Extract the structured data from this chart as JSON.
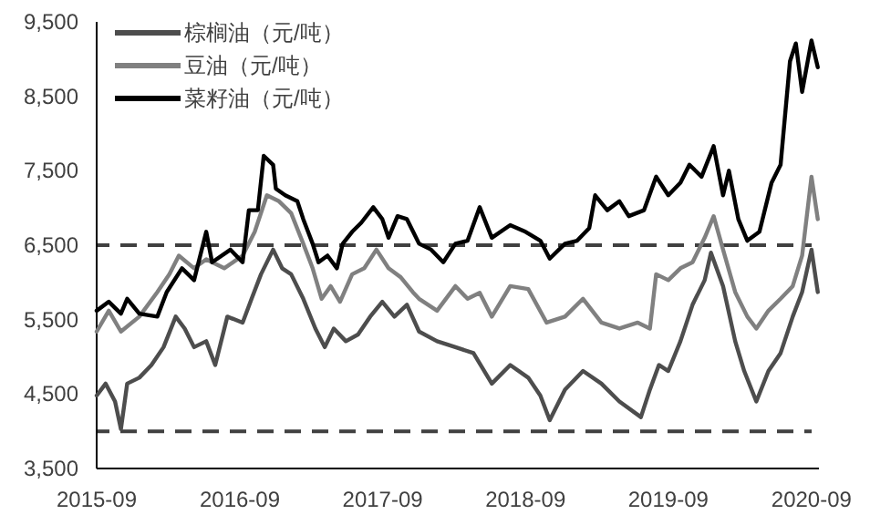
{
  "chart_data": {
    "type": "line",
    "legend": "top left",
    "xlim": [
      "2015-09-01",
      "2020-09-20"
    ],
    "xticks": [
      "2015-09",
      "2016-09",
      "2017-09",
      "2018-09",
      "2019-09",
      "2020-09"
    ],
    "ylim": [
      3500,
      9500
    ],
    "yticks": [
      {
        "value": 3500,
        "label": "3,500"
      },
      {
        "value": 4500,
        "label": "4,500"
      },
      {
        "value": 5500,
        "label": "5,500"
      },
      {
        "value": 6500,
        "label": "6,500"
      },
      {
        "value": 7500,
        "label": "7,500"
      },
      {
        "value": 8500,
        "label": "8,500"
      },
      {
        "value": 9500,
        "label": "9,500"
      }
    ],
    "ref_lines": [
      {
        "axis": "y",
        "value": 6500,
        "color": "#404040",
        "line_style": "dashed"
      },
      {
        "axis": "y",
        "value": 4000,
        "color": "#404040",
        "line_style": "dashed"
      }
    ],
    "series": [
      {
        "name": "棕榈油（元/吨）",
        "color": "#4d4d4d",
        "x": [
          "2015-09-01",
          "2015-09-24",
          "2015-10-18",
          "2015-11-02",
          "2015-11-18",
          "2015-12-19",
          "2016-01-19",
          "2016-02-19",
          "2016-03-21",
          "2016-04-13",
          "2016-05-07",
          "2016-06-07",
          "2016-06-30",
          "2016-07-31",
          "2016-09-08",
          "2016-10-01",
          "2016-10-25",
          "2016-11-25",
          "2016-12-18",
          "2017-01-10",
          "2017-02-10",
          "2017-03-13",
          "2017-04-06",
          "2017-04-29",
          "2017-05-30",
          "2017-06-30",
          "2017-07-31",
          "2017-08-31",
          "2017-10-01",
          "2017-11-02",
          "2017-12-03",
          "2018-01-18",
          "2018-03-06",
          "2018-04-21",
          "2018-06-07",
          "2018-07-24",
          "2018-09-08",
          "2018-10-09",
          "2018-11-02",
          "2018-12-11",
          "2019-01-26",
          "2019-03-14",
          "2019-04-29",
          "2019-06-23",
          "2019-07-16",
          "2019-08-08",
          "2019-09-01",
          "2019-10-02",
          "2019-11-02",
          "2019-12-03",
          "2019-12-19",
          "2020-01-19",
          "2020-02-19",
          "2020-03-13",
          "2020-04-13",
          "2020-05-14",
          "2020-06-14",
          "2020-07-15",
          "2020-08-08",
          "2020-09-01",
          "2020-09-17"
        ],
        "values": [
          4480,
          4640,
          4400,
          4030,
          4640,
          4720,
          4890,
          5130,
          5540,
          5380,
          5130,
          5210,
          4890,
          5540,
          5460,
          5780,
          6110,
          6440,
          6190,
          6110,
          5780,
          5380,
          5130,
          5380,
          5210,
          5300,
          5540,
          5740,
          5540,
          5700,
          5340,
          5210,
          5130,
          5050,
          4640,
          4890,
          4720,
          4480,
          4150,
          4560,
          4810,
          4640,
          4400,
          4190,
          4560,
          4890,
          4810,
          5210,
          5700,
          6030,
          6400,
          5950,
          5210,
          4810,
          4400,
          4810,
          5050,
          5540,
          5870,
          6440,
          5870
        ]
      },
      {
        "name": "豆油（元/吨）",
        "color": "#808080",
        "x": [
          "2015-09-01",
          "2015-10-02",
          "2015-11-02",
          "2015-12-19",
          "2016-02-03",
          "2016-03-05",
          "2016-03-29",
          "2016-05-07",
          "2016-06-07",
          "2016-07-23",
          "2016-09-08",
          "2016-10-09",
          "2016-11-09",
          "2016-12-10",
          "2017-01-10",
          "2017-02-10",
          "2017-03-06",
          "2017-03-29",
          "2017-04-21",
          "2017-05-15",
          "2017-06-15",
          "2017-07-16",
          "2017-08-16",
          "2017-09-16",
          "2017-10-17",
          "2017-11-17",
          "2017-12-03",
          "2018-01-18",
          "2018-03-06",
          "2018-04-06",
          "2018-05-07",
          "2018-06-07",
          "2018-07-24",
          "2018-09-08",
          "2018-10-25",
          "2018-12-11",
          "2019-01-26",
          "2019-03-14",
          "2019-04-29",
          "2019-06-15",
          "2019-07-16",
          "2019-08-01",
          "2019-09-01",
          "2019-10-02",
          "2019-11-02",
          "2019-12-03",
          "2019-12-26",
          "2020-01-19",
          "2020-02-19",
          "2020-03-21",
          "2020-04-13",
          "2020-05-14",
          "2020-06-14",
          "2020-07-15",
          "2020-08-08",
          "2020-09-01",
          "2020-09-17"
        ],
        "values": [
          5340,
          5620,
          5340,
          5540,
          5870,
          6110,
          6360,
          6190,
          6310,
          6190,
          6360,
          6680,
          7170,
          7090,
          6930,
          6520,
          6190,
          5780,
          5950,
          5740,
          6110,
          6190,
          6440,
          6190,
          6070,
          5870,
          5780,
          5620,
          5950,
          5780,
          5860,
          5540,
          5950,
          5910,
          5460,
          5540,
          5780,
          5460,
          5380,
          5460,
          5380,
          6110,
          6030,
          6190,
          6270,
          6600,
          6890,
          6440,
          5870,
          5540,
          5380,
          5620,
          5780,
          5950,
          6360,
          7420,
          6850
        ]
      },
      {
        "name": "菜籽油（元/吨）",
        "color": "#000000",
        "x": [
          "2015-09-01",
          "2015-10-02",
          "2015-11-02",
          "2015-11-18",
          "2015-12-19",
          "2016-02-03",
          "2016-02-27",
          "2016-04-06",
          "2016-05-07",
          "2016-06-07",
          "2016-06-22",
          "2016-08-08",
          "2016-09-08",
          "2016-09-24",
          "2016-10-17",
          "2016-11-01",
          "2016-11-25",
          "2016-12-02",
          "2016-12-26",
          "2017-01-26",
          "2017-02-10",
          "2017-03-06",
          "2017-03-21",
          "2017-04-13",
          "2017-05-07",
          "2017-05-22",
          "2017-06-15",
          "2017-07-08",
          "2017-08-08",
          "2017-08-31",
          "2017-09-16",
          "2017-10-09",
          "2017-11-02",
          "2017-12-03",
          "2018-01-03",
          "2018-02-03",
          "2018-03-06",
          "2018-04-06",
          "2018-05-07",
          "2018-06-07",
          "2018-07-24",
          "2018-09-01",
          "2018-10-09",
          "2018-11-02",
          "2018-12-11",
          "2019-01-11",
          "2019-02-11",
          "2019-02-26",
          "2019-03-29",
          "2019-04-29",
          "2019-05-23",
          "2019-07-01",
          "2019-08-01",
          "2019-09-01",
          "2019-10-02",
          "2019-10-25",
          "2019-11-25",
          "2019-12-26",
          "2020-01-19",
          "2020-02-03",
          "2020-02-27",
          "2020-03-21",
          "2020-04-21",
          "2020-05-22",
          "2020-06-14",
          "2020-07-08",
          "2020-07-23",
          "2020-08-08",
          "2020-09-01",
          "2020-09-17"
        ],
        "values": [
          5620,
          5740,
          5580,
          5780,
          5580,
          5540,
          5870,
          6190,
          6030,
          6680,
          6270,
          6440,
          6270,
          6970,
          6970,
          7700,
          7580,
          7260,
          7170,
          7090,
          6850,
          6520,
          6270,
          6360,
          6190,
          6520,
          6680,
          6800,
          7010,
          6850,
          6600,
          6890,
          6850,
          6520,
          6440,
          6270,
          6520,
          6560,
          7010,
          6600,
          6770,
          6680,
          6560,
          6320,
          6520,
          6560,
          6730,
          7170,
          6970,
          7090,
          6890,
          6970,
          7420,
          7170,
          7340,
          7580,
          7420,
          7830,
          7170,
          7500,
          6850,
          6560,
          6680,
          7340,
          7580,
          8970,
          9210,
          8560,
          9250,
          8890
        ]
      }
    ]
  }
}
